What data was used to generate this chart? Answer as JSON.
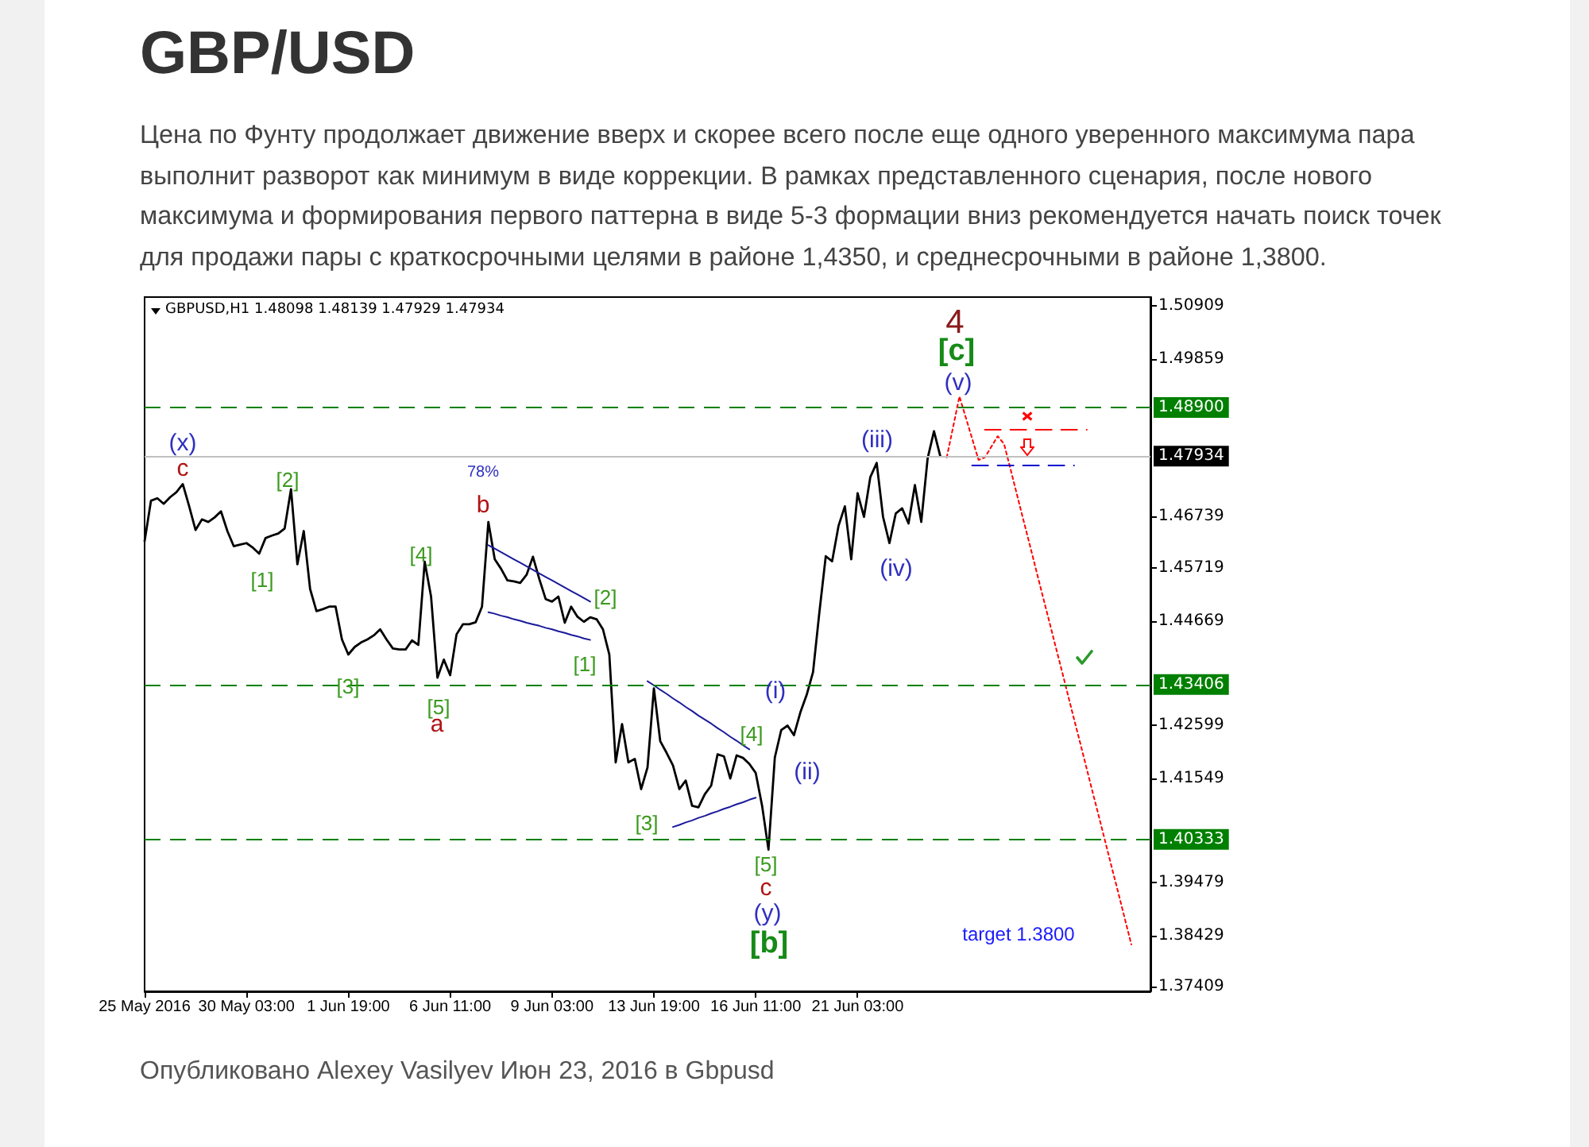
{
  "chart_data": {
    "type": "line",
    "title": "GBP/USD",
    "subtitle": "Цена по Фунту продолжает движение вверх и скорее всего после еще одного уверенного максимума пара выполнит разворот как минимум в виде коррекции. В рамках представленного сценария, после нового максимума и формирования первого паттерна в виде 5-3 формации вниз рекомендуется начать поиск точек для продажи пары с краткосрочными целями в районе 1,4350, и среднесрочными в районе 1,3800.",
    "annotations": [
      "GBPUSD,H1 1.48098 1.48139 1.47929 1.47934",
      "(x)",
      "c",
      "[2]",
      "[1]",
      "[3]",
      "[4]",
      "[5]",
      "a",
      "78%",
      "b",
      "[1]",
      "[2]",
      "[3]",
      "[4]",
      "[5]",
      "c",
      "(y)",
      "[b]",
      "(i)",
      "(ii)",
      "(iii)",
      "(iv)",
      "(v)",
      "[c]",
      "4",
      "target 1.3800",
      "Опубликовано Alexey Vasilyev Июн 23, 2016 в Gbpusd"
    ],
    "categories": [
      "25 May 2016",
      null,
      null,
      null,
      null,
      null,
      null,
      null,
      null,
      null,
      null,
      null,
      null,
      null,
      null,
      null,
      "30 May 03:00",
      null,
      null,
      null,
      null,
      null,
      null,
      null,
      null,
      null,
      null,
      null,
      null,
      null,
      null,
      null,
      "1 Jun 19:00",
      null,
      null,
      null,
      null,
      null,
      null,
      null,
      null,
      null,
      null,
      null,
      null,
      null,
      null,
      null,
      "6 Jun 11:00",
      null,
      null,
      null,
      null,
      null,
      null,
      null,
      null,
      null,
      null,
      null,
      null,
      null,
      null,
      null,
      "9 Jun 03:00",
      null,
      null,
      null,
      null,
      null,
      null,
      null,
      null,
      null,
      null,
      null,
      null,
      null,
      null,
      null,
      "13 Jun 19:00",
      null,
      null,
      null,
      null,
      null,
      null,
      null,
      null,
      null,
      null,
      null,
      null,
      null,
      null,
      null,
      "16 Jun 11:00",
      null,
      null,
      null,
      null,
      null,
      null,
      null,
      null,
      null,
      null,
      null,
      null,
      null,
      null,
      null,
      "21 Jun 03:00",
      null,
      null,
      null,
      null,
      null,
      null,
      null,
      null,
      null,
      null,
      null,
      null,
      null,
      null,
      null,
      null,
      null,
      null,
      null,
      null,
      null,
      null,
      null,
      null,
      null,
      null,
      null,
      null,
      null,
      null,
      null,
      null,
      null,
      null,
      null,
      null,
      null,
      null,
      null,
      null,
      null,
      null,
      null,
      null,
      null,
      null
    ],
    "ylim": [
      1.3732,
      1.5109
    ],
    "yticks": [
      1.50909,
      1.49859,
      1.46739,
      1.45719,
      1.44669,
      1.42599,
      1.41549,
      1.39479,
      1.38429,
      1.37409
    ],
    "marker": "none",
    "ref_lines": [
      {
        "axis": "y",
        "value": 1.489,
        "label": "1.48900",
        "color": "#008000",
        "line_style": "dashed"
      },
      {
        "axis": "y",
        "value": 1.47934,
        "label": "1.47934",
        "color": "#c0c0c0",
        "line_style": "solid"
      },
      {
        "axis": "y",
        "value": 1.43406,
        "label": "1.43406",
        "color": "#008000",
        "line_style": "dashed"
      },
      {
        "axis": "y",
        "value": 1.40333,
        "label": "1.40333",
        "color": "#008000",
        "line_style": "dashed"
      }
    ],
    "series": [
      {
        "color": "#000000",
        "values": [
          1.4625,
          1.4705,
          1.471,
          1.4699,
          1.4712,
          1.4722,
          1.4738,
          1.4694,
          1.4647,
          1.4668,
          1.4663,
          1.4672,
          1.4684,
          1.4645,
          1.4615,
          1.4618,
          1.4621,
          1.4612,
          1.46,
          1.4631,
          1.4636,
          1.464,
          1.465,
          1.4728,
          1.4579,
          1.4645,
          1.453,
          1.4486,
          1.449,
          1.4495,
          1.4495,
          1.443,
          1.44,
          1.4415,
          1.4424,
          1.443,
          1.4438,
          1.445,
          1.443,
          1.4412,
          1.441,
          1.441,
          1.4428,
          1.4419,
          1.4584,
          1.4515,
          1.4354,
          1.439,
          1.4359,
          1.444,
          1.446,
          1.446,
          1.4464,
          1.4495,
          1.4663,
          1.4589,
          1.457,
          1.4547,
          1.4545,
          1.4542,
          1.4558,
          1.4594,
          1.455,
          1.451,
          1.4505,
          1.4515,
          1.4463,
          1.4495,
          1.4475,
          1.4465,
          1.4474,
          1.447,
          1.445,
          1.44,
          1.4186,
          1.4262,
          1.4186,
          1.4193,
          1.4133,
          1.4176,
          1.4333,
          1.4228,
          1.4205,
          1.418,
          1.4133,
          1.415,
          1.41,
          1.4097,
          1.4123,
          1.414,
          1.4202,
          1.4198,
          1.4154,
          1.42,
          1.4195,
          1.4183,
          1.4165,
          1.41,
          1.4013,
          1.4196,
          1.425,
          1.4259,
          1.424,
          1.4285,
          1.432,
          1.4365,
          1.4484,
          1.4595,
          1.4585,
          1.4655,
          1.4694,
          1.4589,
          1.472,
          1.4673,
          1.4752,
          1.478,
          1.4673,
          1.4621,
          1.468,
          1.469,
          1.466,
          1.4736,
          1.4663,
          1.4789,
          1.4843,
          1.4793,
          null,
          null,
          null,
          null,
          null,
          null,
          null,
          null,
          null,
          null,
          null,
          null,
          null,
          null,
          null,
          null,
          null,
          null,
          null,
          null,
          null,
          null,
          null,
          null,
          null,
          null,
          null,
          null,
          null,
          null,
          null,
          null,
          null
        ]
      },
      {
        "color": "#ff0000",
        "line_style": "dotted",
        "values": [
          null,
          null,
          null,
          null,
          null,
          null,
          null,
          null,
          null,
          null,
          null,
          null,
          null,
          null,
          null,
          null,
          null,
          null,
          null,
          null,
          null,
          null,
          null,
          null,
          null,
          null,
          null,
          null,
          null,
          null,
          null,
          null,
          null,
          null,
          null,
          null,
          null,
          null,
          null,
          null,
          null,
          null,
          null,
          null,
          null,
          null,
          null,
          null,
          null,
          null,
          null,
          null,
          null,
          null,
          null,
          null,
          null,
          null,
          null,
          null,
          null,
          null,
          null,
          null,
          null,
          null,
          null,
          null,
          null,
          null,
          null,
          null,
          null,
          null,
          null,
          null,
          null,
          null,
          null,
          null,
          null,
          null,
          null,
          null,
          null,
          null,
          null,
          null,
          null,
          null,
          null,
          null,
          null,
          null,
          null,
          null,
          null,
          null,
          null,
          null,
          null,
          null,
          null,
          null,
          null,
          null,
          null,
          null,
          null,
          null,
          null,
          null,
          null,
          null,
          null,
          null,
          null,
          null,
          null,
          null,
          null,
          null,
          null,
          null,
          null,
          null,
          1.4791,
          1.4851,
          1.4912,
          1.487,
          1.4828,
          1.4786,
          1.4791,
          1.4812,
          1.4833,
          1.4818,
          1.4769,
          1.4719,
          1.4669,
          1.462,
          1.457,
          1.452,
          1.4471,
          1.4421,
          1.4372,
          1.4322,
          1.4272,
          1.4223,
          1.4173,
          1.4123,
          1.4074,
          1.4024,
          1.3974,
          1.3925,
          1.3875,
          1.3825,
          null,
          null,
          null
        ]
      },
      {
        "color": "#ff0000",
        "line_style": "dashed",
        "values": [
          null,
          null,
          null,
          null,
          null,
          null,
          null,
          null,
          null,
          null,
          null,
          null,
          null,
          null,
          null,
          null,
          null,
          null,
          null,
          null,
          null,
          null,
          null,
          null,
          null,
          null,
          null,
          null,
          null,
          null,
          null,
          null,
          null,
          null,
          null,
          null,
          null,
          null,
          null,
          null,
          null,
          null,
          null,
          null,
          null,
          null,
          null,
          null,
          null,
          null,
          null,
          null,
          null,
          null,
          null,
          null,
          null,
          null,
          null,
          null,
          null,
          null,
          null,
          null,
          null,
          null,
          null,
          null,
          null,
          null,
          null,
          null,
          null,
          null,
          null,
          null,
          null,
          null,
          null,
          null,
          null,
          null,
          null,
          null,
          null,
          null,
          null,
          null,
          null,
          null,
          null,
          null,
          null,
          null,
          null,
          null,
          null,
          null,
          null,
          null,
          null,
          null,
          null,
          null,
          null,
          null,
          null,
          null,
          null,
          null,
          null,
          null,
          null,
          null,
          null,
          null,
          null,
          null,
          null,
          null,
          null,
          null,
          null,
          null,
          null,
          null,
          null,
          null,
          null,
          null,
          null,
          null,
          1.4846,
          1.4846,
          1.4846,
          1.4846,
          1.4846,
          1.4846,
          1.4846,
          1.4846,
          1.4846,
          1.4846,
          1.4846,
          1.4846,
          1.4846,
          1.4846,
          1.4846,
          1.4846,
          1.4846,
          null,
          null,
          null,
          null,
          null,
          null,
          null,
          null,
          null,
          null
        ]
      },
      {
        "color": "#0000cd",
        "line_style": "dashed",
        "values": [
          null,
          null,
          null,
          null,
          null,
          null,
          null,
          null,
          null,
          null,
          null,
          null,
          null,
          null,
          null,
          null,
          null,
          null,
          null,
          null,
          null,
          null,
          null,
          null,
          null,
          null,
          null,
          null,
          null,
          null,
          null,
          null,
          null,
          null,
          null,
          null,
          null,
          null,
          null,
          null,
          null,
          null,
          null,
          null,
          null,
          null,
          null,
          null,
          null,
          null,
          null,
          null,
          null,
          null,
          null,
          null,
          null,
          null,
          null,
          null,
          null,
          null,
          null,
          null,
          null,
          null,
          null,
          null,
          null,
          null,
          null,
          null,
          null,
          null,
          null,
          null,
          null,
          null,
          null,
          null,
          null,
          null,
          null,
          null,
          null,
          null,
          null,
          null,
          null,
          null,
          null,
          null,
          null,
          null,
          null,
          null,
          null,
          null,
          null,
          null,
          null,
          null,
          null,
          null,
          null,
          null,
          null,
          null,
          null,
          null,
          null,
          null,
          null,
          null,
          null,
          null,
          null,
          null,
          null,
          null,
          null,
          null,
          null,
          null,
          null,
          null,
          null,
          null,
          null,
          null,
          1.4775,
          1.4775,
          1.4775,
          1.4775,
          1.4775,
          1.4775,
          1.4775,
          1.4775,
          1.4775,
          1.4775,
          1.4775,
          1.4775,
          1.4775,
          1.4775,
          1.4775,
          1.4775,
          1.4775,
          null,
          null,
          null,
          null,
          null,
          null,
          null,
          null,
          null,
          null,
          null,
          null
        ]
      },
      {
        "color": "#1a1a9a",
        "values": [
          null,
          null,
          null,
          null,
          null,
          null,
          null,
          null,
          null,
          null,
          null,
          null,
          null,
          null,
          null,
          null,
          null,
          null,
          null,
          null,
          null,
          null,
          null,
          null,
          null,
          null,
          null,
          null,
          null,
          null,
          null,
          null,
          null,
          null,
          null,
          null,
          null,
          null,
          null,
          null,
          null,
          null,
          null,
          null,
          null,
          null,
          null,
          null,
          null,
          null,
          null,
          null,
          null,
          null,
          1.4617,
          1.461,
          1.4603,
          1.4596,
          1.4589,
          1.4582,
          1.4575,
          1.4568,
          1.4561,
          1.4554,
          1.4547,
          1.454,
          1.4533,
          1.4526,
          1.4519,
          1.4512,
          1.4505,
          null,
          null,
          null,
          null,
          null,
          null,
          null,
          null,
          null,
          null,
          null,
          null,
          null,
          null,
          null,
          null,
          null,
          null,
          null,
          null,
          null,
          null,
          null,
          null,
          null,
          null,
          null,
          null,
          null,
          null,
          null,
          null,
          null,
          null,
          null,
          null,
          null,
          null,
          null,
          null,
          null,
          null,
          null,
          null,
          null,
          null,
          null,
          null,
          null,
          null,
          null,
          null,
          null,
          null,
          null,
          null,
          null,
          null,
          null,
          null,
          null,
          null,
          null,
          null,
          null,
          null,
          null,
          null,
          null,
          null,
          null,
          null,
          null,
          null,
          null,
          null,
          null,
          null,
          null,
          null,
          null,
          null,
          null,
          null,
          null,
          null,
          null,
          null
        ]
      },
      {
        "color": "#1a1a9a",
        "values": [
          null,
          null,
          null,
          null,
          null,
          null,
          null,
          null,
          null,
          null,
          null,
          null,
          null,
          null,
          null,
          null,
          null,
          null,
          null,
          null,
          null,
          null,
          null,
          null,
          null,
          null,
          null,
          null,
          null,
          null,
          null,
          null,
          null,
          null,
          null,
          null,
          null,
          null,
          null,
          null,
          null,
          null,
          null,
          null,
          null,
          null,
          null,
          null,
          null,
          null,
          null,
          null,
          null,
          null,
          1.4484,
          1.4481,
          1.4477,
          1.4474,
          1.447,
          1.4467,
          1.4463,
          1.446,
          1.4457,
          1.4453,
          1.445,
          1.4446,
          1.4443,
          1.4439,
          1.4436,
          1.4432,
          1.4429,
          null,
          null,
          null,
          null,
          null,
          null,
          null,
          null,
          null,
          null,
          null,
          null,
          null,
          null,
          null,
          null,
          null,
          null,
          null,
          null,
          null,
          null,
          null,
          null,
          null,
          null,
          null,
          null,
          null,
          null,
          null,
          null,
          null,
          null,
          null,
          null,
          null,
          null,
          null,
          null,
          null,
          null,
          null,
          null,
          null,
          null,
          null,
          null,
          null,
          null,
          null,
          null,
          null,
          null,
          null,
          null,
          null,
          null,
          null,
          null,
          null,
          null,
          null,
          null,
          null,
          null,
          null,
          null,
          null,
          null,
          null,
          null,
          null,
          null,
          null,
          null,
          null,
          null,
          null,
          null,
          null,
          null,
          null,
          null,
          null,
          null,
          null,
          null
        ]
      },
      {
        "color": "#1a1a9a",
        "values": [
          null,
          null,
          null,
          null,
          null,
          null,
          null,
          null,
          null,
          null,
          null,
          null,
          null,
          null,
          null,
          null,
          null,
          null,
          null,
          null,
          null,
          null,
          null,
          null,
          null,
          null,
          null,
          null,
          null,
          null,
          null,
          null,
          null,
          null,
          null,
          null,
          null,
          null,
          null,
          null,
          null,
          null,
          null,
          null,
          null,
          null,
          null,
          null,
          null,
          null,
          null,
          null,
          null,
          null,
          null,
          null,
          null,
          null,
          null,
          null,
          null,
          null,
          null,
          null,
          null,
          null,
          null,
          null,
          null,
          null,
          null,
          null,
          null,
          null,
          null,
          null,
          null,
          null,
          null,
          1.4347,
          1.4339,
          1.433,
          1.4322,
          1.4313,
          1.4305,
          1.4296,
          1.4288,
          1.4279,
          1.4271,
          1.4263,
          1.4254,
          1.4246,
          1.4237,
          1.4229,
          1.422,
          1.4212,
          null,
          null,
          null,
          null,
          null,
          null,
          null,
          null,
          null,
          null,
          null,
          null,
          null,
          null,
          null,
          null,
          null,
          null,
          null,
          null,
          null,
          null,
          null,
          null,
          null,
          null,
          null,
          null,
          null,
          null,
          null,
          null,
          null,
          null,
          null,
          null,
          null,
          null,
          null,
          null,
          null,
          null,
          null,
          null,
          null,
          null,
          null,
          null,
          null,
          null,
          null,
          null,
          null,
          null,
          null,
          null,
          null,
          null,
          null,
          null,
          null,
          null,
          null
        ]
      },
      {
        "color": "#1a1a9a",
        "values": [
          null,
          null,
          null,
          null,
          null,
          null,
          null,
          null,
          null,
          null,
          null,
          null,
          null,
          null,
          null,
          null,
          null,
          null,
          null,
          null,
          null,
          null,
          null,
          null,
          null,
          null,
          null,
          null,
          null,
          null,
          null,
          null,
          null,
          null,
          null,
          null,
          null,
          null,
          null,
          null,
          null,
          null,
          null,
          null,
          null,
          null,
          null,
          null,
          null,
          null,
          null,
          null,
          null,
          null,
          null,
          null,
          null,
          null,
          null,
          null,
          null,
          null,
          null,
          null,
          null,
          null,
          null,
          null,
          null,
          null,
          null,
          null,
          null,
          null,
          null,
          null,
          null,
          null,
          null,
          null,
          null,
          null,
          null,
          1.4058,
          1.4062,
          1.4067,
          1.4071,
          1.4076,
          1.408,
          1.4085,
          1.4089,
          1.4094,
          1.4098,
          1.4103,
          1.4107,
          1.4112,
          1.4116,
          null,
          null,
          null,
          null,
          null,
          null,
          null,
          null,
          null,
          null,
          null,
          null,
          null,
          null,
          null,
          null,
          null,
          null,
          null,
          null,
          null,
          null,
          null,
          null,
          null,
          null,
          null,
          null,
          null,
          null,
          null,
          null,
          null,
          null,
          null,
          null,
          null,
          null,
          null,
          null,
          null,
          null,
          null,
          null,
          null,
          null,
          null,
          null,
          null,
          null,
          null,
          null,
          null,
          null,
          null,
          null,
          null,
          null,
          null,
          null,
          null,
          null
        ]
      }
    ]
  }
}
